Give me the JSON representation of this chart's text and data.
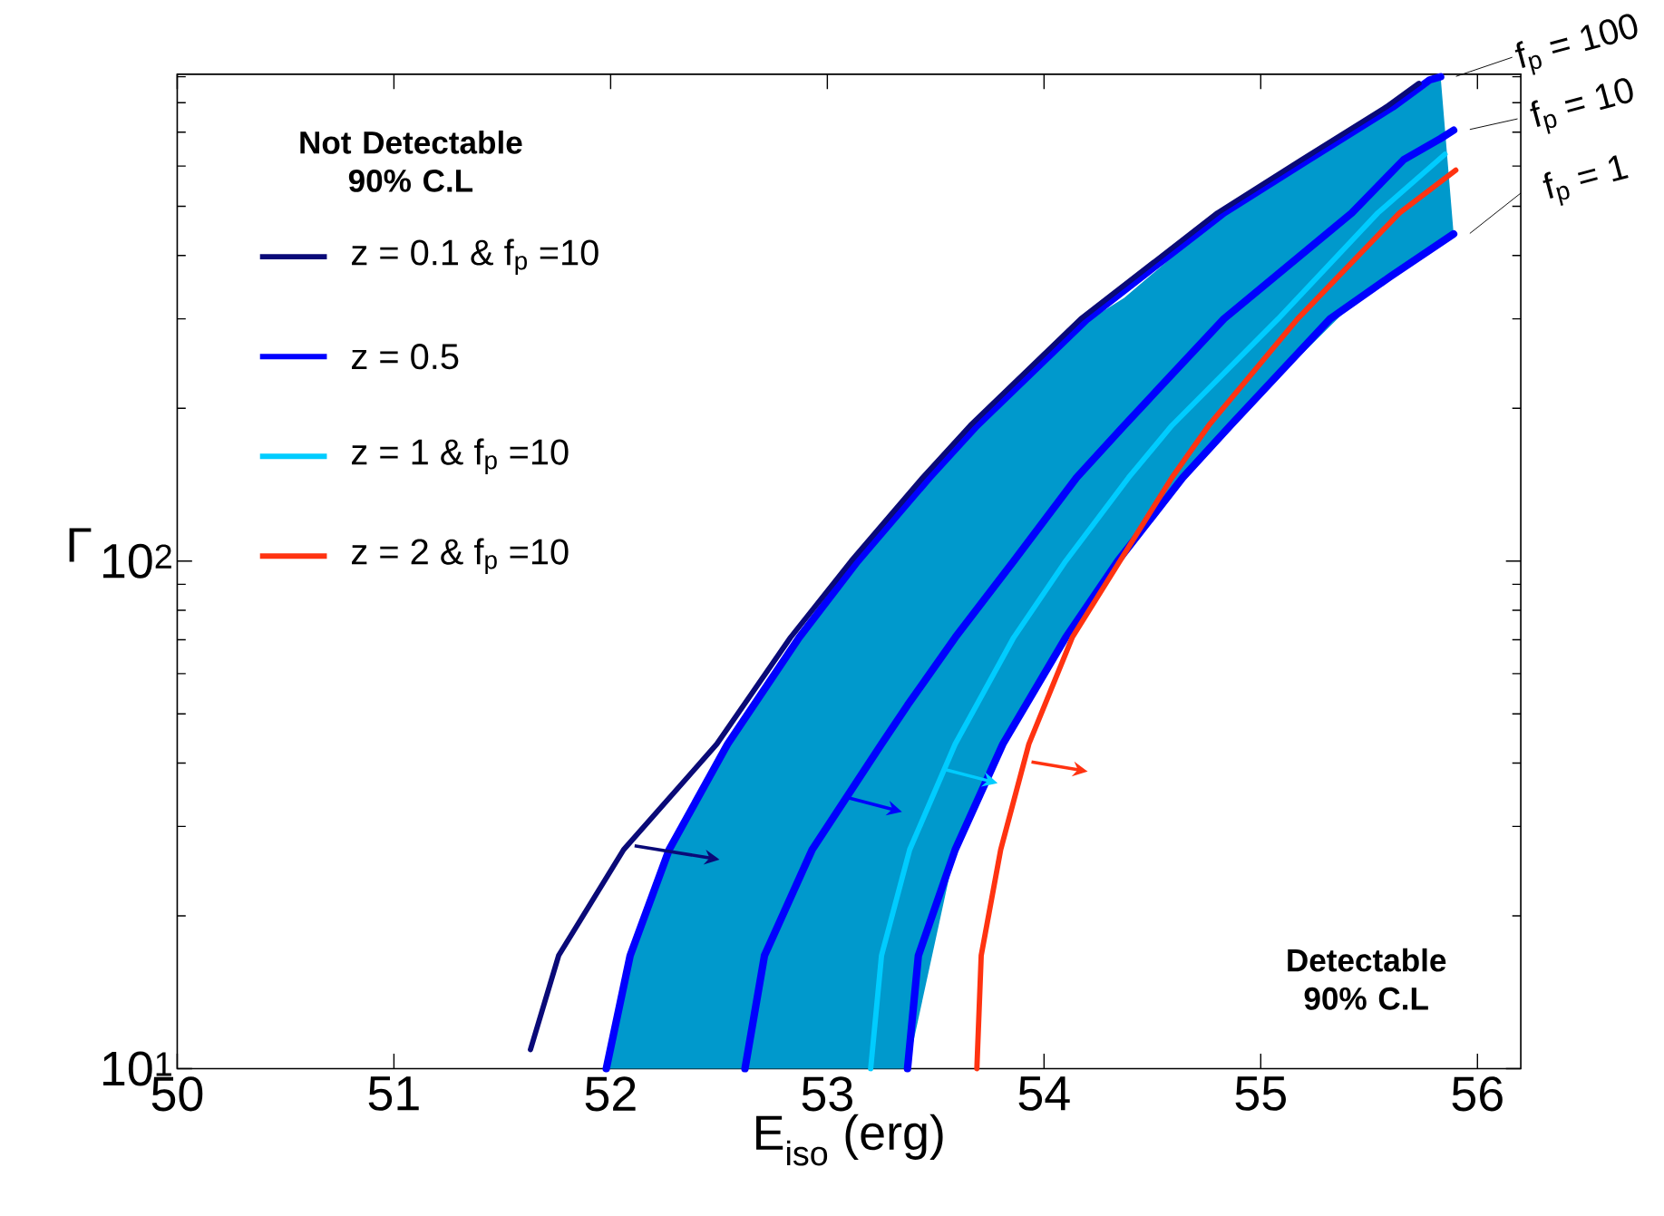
{
  "chart_data": {
    "type": "line",
    "xlabel": "E$_{iso}$ (erg)",
    "ylabel": "Γ",
    "legend_title": "Not Detectable 90% C.L",
    "log": "y",
    "legend": "top left",
    "marker": "none",
    "line_style": "solid",
    "grid": false,
    "xlim": [
      50,
      56.2
    ],
    "ylim": [
      10,
      910
    ],
    "xticks": [
      50,
      51,
      52,
      53,
      54,
      55,
      56
    ],
    "yticks": [
      {
        "value": 10,
        "label": "10$^{1}$"
      },
      {
        "value": 20,
        "label": null
      },
      {
        "value": 30,
        "label": null
      },
      {
        "value": 40,
        "label": null
      },
      {
        "value": 50,
        "label": null
      },
      {
        "value": 60,
        "label": null
      },
      {
        "value": 70,
        "label": null
      },
      {
        "value": 80,
        "label": null
      },
      {
        "value": 90,
        "label": null
      },
      {
        "value": 100,
        "label": "10$^{2}$"
      },
      {
        "value": 200,
        "label": null
      },
      {
        "value": 300,
        "label": null
      },
      {
        "value": 400,
        "label": null
      },
      {
        "value": 500,
        "label": null
      },
      {
        "value": 600,
        "label": null
      },
      {
        "value": 700,
        "label": null
      },
      {
        "value": 800,
        "label": null
      },
      {
        "value": 900,
        "label": null
      }
    ],
    "series": [
      {
        "name": "z = 0.1 & f$_{p}$ =10",
        "color": "#0a0a78",
        "x": [
          51.63,
          51.76,
          52.06,
          52.49,
          52.83,
          53.11,
          53.44,
          53.66,
          54.17,
          54.8,
          55.19,
          55.58,
          55.73
        ],
        "values": [
          10.9,
          16.7,
          27,
          43.6,
          70.7,
          100,
          146,
          185,
          300,
          485,
          618,
          785,
          873
        ]
      },
      {
        "name": "z = 0.5",
        "color": "#0000ff",
        "x": [
          51.98,
          52.09,
          52.27,
          52.54,
          52.62,
          52.71,
          52.93,
          53.25,
          53.37,
          53.59,
          53.86,
          54.15,
          54.37,
          54.83,
          55.42,
          55.66,
          55.83,
          55.89
        ],
        "values": [
          null,
          null,
          null,
          null,
          10,
          16.7,
          27,
          43.6,
          52,
          70.7,
          100,
          146,
          185,
          300,
          485,
          618,
          680,
          706
        ],
        "lower": [
          10,
          10,
          10,
          10,
          10,
          10,
          10,
          10,
          10,
          27,
          47,
          75,
          104,
          180,
          320,
          378,
          420,
          441
        ],
        "upper": [
          10,
          16.7,
          27,
          43.6,
          49,
          55,
          76,
          115,
          131,
          167,
          225,
          288,
          330,
          485,
          700,
          800,
          900,
          441
        ]
      },
      {
        "color": "#0000ff",
        "x": [
          51.98,
          52.09,
          52.27,
          52.54,
          52.87,
          53.14,
          53.47,
          53.69,
          54.2,
          54.83,
          55.22,
          55.61,
          55.78,
          55.83
        ],
        "values": [
          10,
          16.7,
          27,
          43.6,
          70.7,
          100,
          146,
          185,
          300,
          485,
          618,
          785,
          887,
          900
        ]
      },
      {
        "color": "#0000ff",
        "x": [
          53.37,
          53.42,
          53.59,
          53.81,
          54.1,
          54.34,
          54.64,
          54.86,
          55.32,
          55.6,
          55.89
        ],
        "values": [
          10,
          16.7,
          27,
          43.6,
          70.7,
          100,
          146,
          185,
          300,
          364,
          441
        ]
      },
      {
        "name": "z = 1 & f$_{p}$ =10",
        "color": "#00ccff",
        "x": [
          53.2,
          53.25,
          53.38,
          53.59,
          53.86,
          54.1,
          54.39,
          54.59,
          55.08,
          55.54,
          55.85
        ],
        "values": [
          10,
          16.7,
          27,
          43.6,
          70.7,
          100,
          146,
          185,
          300,
          485,
          633
        ]
      },
      {
        "name": "z = 2 & f$_{p}$ =10",
        "color": "#ff3311",
        "x": [
          53.69,
          53.71,
          53.8,
          53.93,
          54.13,
          54.35,
          54.59,
          54.76,
          55.17,
          55.64,
          55.9
        ],
        "values": [
          10,
          16.7,
          27,
          43.6,
          70.7,
          100,
          146,
          185,
          300,
          485,
          589
        ]
      }
    ],
    "annotations": [
      "Detectable 90% C.L",
      "f$_{p}$ = 100",
      "f$_{p}$ = 10",
      "f$_{p}$ = 1"
    ]
  }
}
